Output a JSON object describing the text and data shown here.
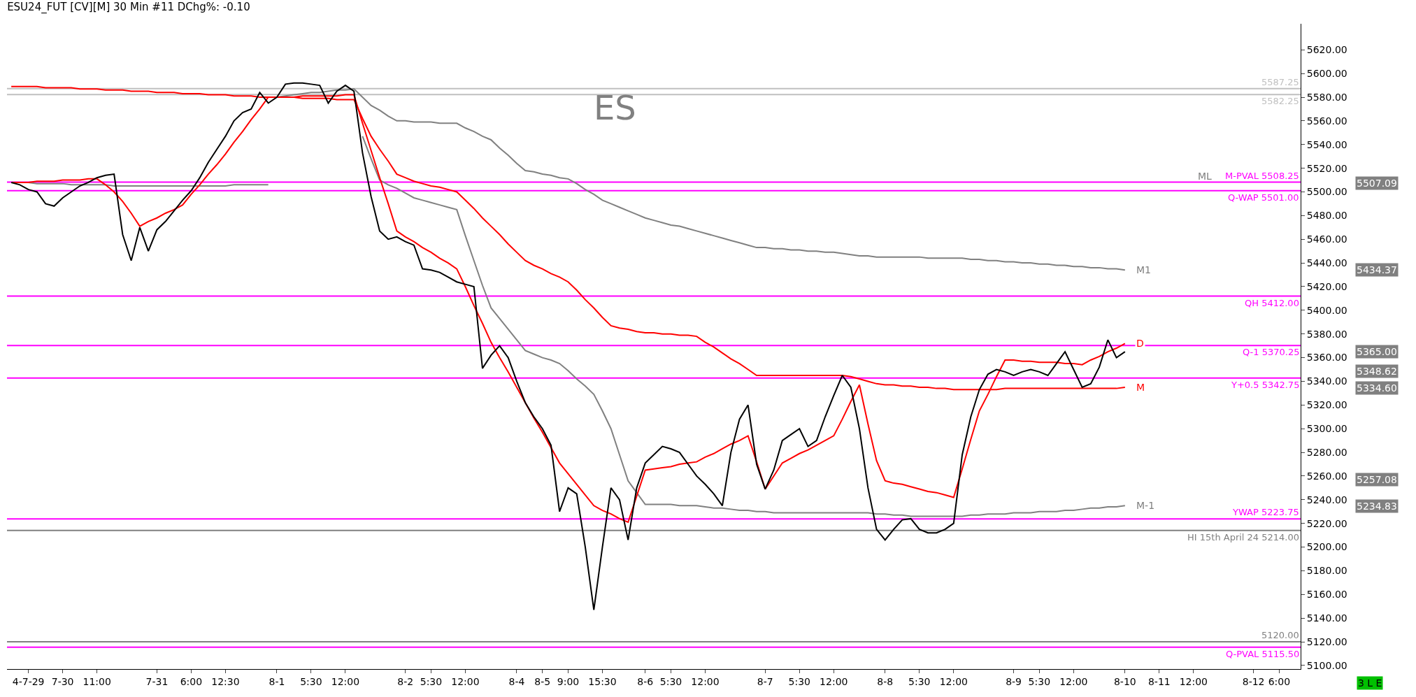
{
  "chart_data": {
    "type": "line",
    "title": "ESU24_FUT [CV][M] 30 Min #11 DChg%: -0.10",
    "categories": [
      null,
      null,
      "4-7-29",
      null,
      null,
      null,
      "7-30",
      null,
      null,
      null,
      "11:00",
      null,
      null,
      null,
      null,
      null,
      null,
      "7-31",
      null,
      null,
      null,
      "6:00",
      null,
      null,
      null,
      "12:30",
      null,
      null,
      null,
      null,
      null,
      "8-1",
      null,
      null,
      null,
      "5:30",
      null,
      null,
      null,
      "12:00",
      null,
      null,
      null,
      null,
      null,
      null,
      "8-2",
      null,
      null,
      "5:30",
      null,
      null,
      null,
      "12:00",
      null,
      null,
      null,
      null,
      null,
      "8-4",
      null,
      null,
      "8-5",
      null,
      null,
      "9:00",
      null,
      null,
      null,
      "15:30",
      null,
      null,
      null,
      null,
      "8-6",
      null,
      null,
      "5:30",
      null,
      null,
      null,
      "12:00",
      null,
      null,
      null,
      null,
      null,
      null,
      "8-7",
      null,
      null,
      null,
      "5:30",
      null,
      null,
      null,
      "12:00",
      null,
      null,
      null,
      null,
      null,
      "8-8",
      null,
      null,
      null,
      "5:30",
      null,
      null,
      null,
      "12:00",
      null,
      null,
      null,
      null,
      null,
      null,
      "8-9",
      null,
      null,
      "5:30",
      null,
      null,
      null,
      "12:00",
      null,
      null,
      null,
      null,
      null,
      "8-10",
      null,
      null,
      null,
      "8-11",
      null,
      null,
      null,
      "12:00",
      null,
      null,
      null,
      null,
      null,
      null,
      "8-12",
      null,
      null,
      "6:00",
      null,
      null
    ],
    "ylim": [
      5097,
      5642
    ],
    "yticks": [
      {
        "value": 5100,
        "label": "5100.00"
      },
      {
        "value": 5120,
        "label": "5120.00"
      },
      {
        "value": 5140,
        "label": "5140.00"
      },
      {
        "value": 5160,
        "label": "5160.00"
      },
      {
        "value": 5180,
        "label": "5180.00"
      },
      {
        "value": 5200,
        "label": "5200.00"
      },
      {
        "value": 5220,
        "label": "5220.00"
      },
      {
        "value": 5240,
        "label": "5240.00"
      },
      {
        "value": 5260,
        "label": "5260.00"
      },
      {
        "value": 5280,
        "label": "5280.00"
      },
      {
        "value": 5300,
        "label": "5300.00"
      },
      {
        "value": 5320,
        "label": "5320.00"
      },
      {
        "value": 5340,
        "label": "5340.00"
      },
      {
        "value": 5360,
        "label": "5360.00"
      },
      {
        "value": 5380,
        "label": "5380.00"
      },
      {
        "value": 5400,
        "label": "5400.00"
      },
      {
        "value": 5420,
        "label": "5420.00"
      },
      {
        "value": 5440,
        "label": "5440.00"
      },
      {
        "value": 5460,
        "label": "5460.00"
      },
      {
        "value": 5480,
        "label": "5480.00"
      },
      {
        "value": 5500,
        "label": "5500.00"
      },
      {
        "value": 5520,
        "label": "5520.00"
      },
      {
        "value": 5540,
        "label": "5540.00"
      },
      {
        "value": 5560,
        "label": "5560.00"
      },
      {
        "value": 5580,
        "label": "5580.00"
      },
      {
        "value": 5600,
        "label": "5600.00"
      },
      {
        "value": 5620,
        "label": "5620.00"
      }
    ],
    "grid": false,
    "marker": "none",
    "line_style": "solid",
    "series": [
      {
        "color": "#808080",
        "values": [
          5508,
          5508,
          5508,
          5507,
          5507,
          5507,
          5507,
          5506,
          5506,
          5506,
          5506,
          5506,
          5505,
          5505,
          5505,
          5505,
          5505,
          5505,
          5505,
          5505,
          5505,
          5505,
          5505,
          5505,
          5505,
          5505,
          5506,
          5506,
          5506,
          5506,
          5506,
          null,
          null,
          null,
          null,
          null,
          null,
          null,
          null,
          null,
          null,
          null,
          null,
          null,
          null,
          null,
          null,
          null,
          null,
          null,
          null,
          null,
          null,
          null,
          null,
          null,
          null,
          null,
          null,
          null,
          null,
          null,
          null,
          null,
          null,
          null,
          null,
          null,
          null,
          null,
          null,
          null,
          null,
          null,
          null,
          null,
          null,
          null,
          null,
          null,
          null,
          null,
          null,
          null,
          null,
          null,
          null,
          null,
          null,
          null,
          null,
          null,
          null,
          null,
          null,
          null,
          null,
          null,
          null,
          null,
          null,
          null,
          null,
          null,
          null,
          null,
          null,
          null,
          null,
          null,
          null,
          null,
          null,
          null,
          null,
          null,
          null,
          null,
          null,
          null,
          null,
          null,
          null,
          null,
          null,
          null,
          null,
          null,
          null,
          null,
          null,
          null,
          null,
          null,
          null,
          null,
          null,
          null,
          null,
          null,
          null,
          null,
          null,
          null,
          null,
          null,
          null,
          null,
          null,
          null,
          null
        ]
      },
      {
        "name": "M1",
        "color": "#808080",
        "values": [
          null,
          null,
          null,
          null,
          null,
          null,
          null,
          null,
          null,
          null,
          null,
          null,
          null,
          null,
          null,
          null,
          null,
          null,
          null,
          null,
          null,
          null,
          null,
          null,
          null,
          null,
          null,
          null,
          null,
          null,
          null,
          5580,
          5581,
          5582,
          5583,
          5584,
          5584,
          5585,
          5586,
          5586,
          5587,
          5580,
          5573,
          5569,
          5564,
          5560,
          5560,
          5559,
          5559,
          5559,
          5558,
          5558,
          5558,
          5554,
          5551,
          5547,
          5544,
          5537,
          5531,
          5524,
          5518,
          5517,
          5515,
          5514,
          5512,
          5511,
          5507,
          5502,
          5498,
          5493,
          5490,
          5487,
          5484,
          5481,
          5478,
          5476,
          5474,
          5472,
          5471,
          5469,
          5467,
          5465,
          5463,
          5461,
          5459,
          5457,
          5455,
          5453,
          5453,
          5452,
          5452,
          5451,
          5451,
          5450,
          5450,
          5449,
          5449,
          5448,
          5447,
          5446,
          5446,
          5445,
          5445,
          5445,
          5445,
          5445,
          5445,
          5444,
          5444,
          5444,
          5444,
          5444,
          5443,
          5443,
          5442,
          5442,
          5441,
          5441,
          5440,
          5440,
          5439,
          5439,
          5438,
          5438,
          5437,
          5437,
          5436,
          5436,
          5435,
          5435,
          5434,
          null,
          null,
          null,
          null,
          null,
          null,
          null,
          null,
          null,
          null,
          null,
          null,
          null,
          null,
          null,
          null,
          null,
          null,
          null,
          null
        ]
      },
      {
        "name": "M-1",
        "color": "#808080",
        "values": [
          null,
          null,
          null,
          null,
          null,
          null,
          null,
          null,
          null,
          null,
          null,
          null,
          null,
          null,
          null,
          null,
          null,
          null,
          null,
          null,
          null,
          null,
          null,
          null,
          null,
          null,
          null,
          null,
          null,
          null,
          null,
          null,
          null,
          null,
          null,
          null,
          null,
          null,
          null,
          null,
          null,
          5547,
          5528,
          5510,
          5506,
          5503,
          5499,
          5495,
          5493,
          5491,
          5489,
          5487,
          5485,
          5463,
          5442,
          5421,
          5402,
          5393,
          5384,
          5375,
          5366,
          5363,
          5360,
          5358,
          5355,
          5349,
          5342,
          5336,
          5329,
          5315,
          5300,
          5278,
          5256,
          5246,
          5236,
          5236,
          5236,
          5236,
          5235,
          5235,
          5235,
          5234,
          5233,
          5233,
          5232,
          5231,
          5231,
          5230,
          5230,
          5229,
          5229,
          5229,
          5229,
          5229,
          5229,
          5229,
          5229,
          5229,
          5229,
          5229,
          5229,
          5228,
          5228,
          5227,
          5227,
          5226,
          5226,
          5226,
          5226,
          5226,
          5226,
          5226,
          5227,
          5227,
          5228,
          5228,
          5228,
          5229,
          5229,
          5229,
          5230,
          5230,
          5230,
          5231,
          5231,
          5232,
          5233,
          5233,
          5234,
          5234,
          5235,
          null,
          null,
          null,
          null,
          null,
          null,
          null,
          null,
          null,
          null,
          null,
          null,
          null,
          null,
          null,
          null,
          null,
          null,
          null,
          null
        ]
      },
      {
        "name": "D",
        "color": "#ff0000",
        "values": [
          5508,
          5508,
          5508,
          5509,
          5509,
          5509,
          5510,
          5510,
          5510,
          5511,
          5511,
          5506,
          5500,
          5492,
          5482,
          5471,
          5475,
          5478,
          5482,
          5485,
          5489,
          5498,
          5506,
          5515,
          5523,
          5532,
          5542,
          5551,
          5561,
          5570,
          5580,
          5580,
          5580,
          5580,
          5581,
          5581,
          5581,
          5581,
          5581,
          5582,
          5582,
          5558,
          5535,
          5512,
          5490,
          5467,
          5462,
          5458,
          5453,
          5449,
          5444,
          5440,
          5435,
          5420,
          5404,
          5389,
          5373,
          5360,
          5348,
          5335,
          5322,
          5309,
          5297,
          5284,
          5271,
          5262,
          5253,
          5244,
          5235,
          5231,
          5228,
          5224,
          5221,
          5243,
          5265,
          5266,
          5267,
          5268,
          5270,
          5271,
          5272,
          5276,
          5279,
          5283,
          5287,
          5290,
          5294,
          5272,
          5249,
          5260,
          5271,
          5275,
          5279,
          5282,
          5286,
          5290,
          5294,
          5308,
          5323,
          5337,
          5304,
          5273,
          5256,
          5254,
          5253,
          5251,
          5249,
          5247,
          5246,
          5244,
          5242,
          5266,
          5291,
          5315,
          5329,
          5344,
          5358,
          5358,
          5357,
          5357,
          5356,
          5356,
          5356,
          5355,
          5355,
          5354,
          5358,
          5361,
          5365,
          5368,
          5372,
          null,
          null,
          null,
          null,
          null,
          null,
          null,
          null,
          null,
          null,
          null,
          null,
          null,
          null,
          null,
          null,
          null,
          null,
          null,
          null
        ]
      },
      {
        "name": "M",
        "color": "#ff0000",
        "values": [
          5589,
          5589,
          5589,
          5589,
          5588,
          5588,
          5588,
          5588,
          5587,
          5587,
          5587,
          5586,
          5586,
          5586,
          5585,
          5585,
          5585,
          5584,
          5584,
          5584,
          5583,
          5583,
          5583,
          5582,
          5582,
          5582,
          5581,
          5581,
          5581,
          5580,
          5580,
          5580,
          5580,
          5580,
          5579,
          5579,
          5579,
          5579,
          5578,
          5578,
          5578,
          5562,
          5547,
          5536,
          5526,
          5515,
          5512,
          5509,
          5507,
          5505,
          5504,
          5502,
          5500,
          5493,
          5486,
          5478,
          5471,
          5464,
          5456,
          5449,
          5442,
          5438,
          5435,
          5431,
          5428,
          5424,
          5417,
          5409,
          5402,
          5394,
          5387,
          5385,
          5384,
          5382,
          5381,
          5381,
          5380,
          5380,
          5379,
          5379,
          5378,
          5373,
          5369,
          5364,
          5359,
          5355,
          5350,
          5345,
          5345,
          5345,
          5345,
          5345,
          5345,
          5345,
          5345,
          5345,
          5345,
          5345,
          5344,
          5342,
          5340,
          5338,
          5337,
          5337,
          5336,
          5336,
          5335,
          5335,
          5334,
          5334,
          5333,
          5333,
          5333,
          5333,
          5333,
          5333,
          5334,
          5334,
          5334,
          5334,
          5334,
          5334,
          5334,
          5334,
          5334,
          5334,
          5334,
          5334,
          5334,
          5334,
          5335,
          null,
          null,
          null,
          null,
          null,
          null,
          null,
          null,
          null,
          null,
          null,
          null,
          null,
          null,
          null,
          null,
          null,
          null,
          null,
          null
        ]
      },
      {
        "color": "#000000",
        "values": [
          5508,
          5506,
          5502,
          5500,
          5490,
          5488,
          5495,
          5500,
          5505,
          5508,
          5512,
          5514,
          5515,
          5464,
          5442,
          5470,
          5450,
          5468,
          5475,
          5484,
          5493,
          5501,
          5512,
          5525,
          5536,
          5547,
          5560,
          5567,
          5570,
          5584,
          5575,
          5580,
          5591,
          5592,
          5592,
          5591,
          5590,
          5575,
          5585,
          5590,
          5585,
          5533,
          5496,
          5467,
          5460,
          5462,
          5458,
          5455,
          5435,
          5434,
          5432,
          5428,
          5424,
          5422,
          5420,
          5351,
          5362,
          5370,
          5360,
          5340,
          5322,
          5310,
          5300,
          5286,
          5230,
          5250,
          5245,
          5200,
          5147,
          5200,
          5250,
          5240,
          5206,
          5250,
          5271,
          5278,
          5285,
          5283,
          5280,
          5270,
          5260,
          5253,
          5245,
          5235,
          5280,
          5308,
          5320,
          5270,
          5249,
          5265,
          5290,
          5295,
          5300,
          5285,
          5290,
          5310,
          5328,
          5345,
          5335,
          5300,
          5250,
          5215,
          5206,
          5215,
          5223,
          5224,
          5215,
          5212,
          5212,
          5215,
          5220,
          5278,
          5310,
          5333,
          5346,
          5350,
          5348,
          5345,
          5348,
          5350,
          5348,
          5345,
          5355,
          5365,
          5350,
          5335,
          5338,
          5352,
          5375,
          5360,
          5365,
          null,
          null,
          null,
          null,
          null,
          null,
          null,
          null,
          null,
          null,
          null,
          null,
          null,
          null,
          null,
          null,
          null,
          null,
          null,
          null
        ]
      }
    ],
    "ref_lines": [
      {
        "axis": "y",
        "value": 5587.25,
        "label": "5587.25",
        "color": "#c0c0c0"
      },
      {
        "axis": "y",
        "value": 5582.25,
        "label": "5582.25",
        "color": "#c0c0c0"
      },
      {
        "axis": "y",
        "value": 5508.25,
        "label": "M-PVAL 5508.25",
        "color": "#ff00ff"
      },
      {
        "axis": "y",
        "value": 5501,
        "label": "Q-WAP 5501.00",
        "color": "#ff00ff"
      },
      {
        "axis": "y",
        "value": 5412,
        "label": "QH 5412.00",
        "color": "#ff00ff"
      },
      {
        "axis": "y",
        "value": 5370.25,
        "label": "Q-1 5370.25",
        "color": "#ff00ff"
      },
      {
        "axis": "y",
        "value": 5342.75,
        "label": "Y+0.5 5342.75",
        "color": "#ff00ff"
      },
      {
        "axis": "y",
        "value": 5223.75,
        "label": "YWAP 5223.75",
        "color": "#ff00ff"
      },
      {
        "axis": "y",
        "value": 5214,
        "label": "HI 15th April 24 5214.00",
        "color": "#808080"
      },
      {
        "axis": "y",
        "value": 5120,
        "label": "5120.00",
        "color": "#808080"
      },
      {
        "axis": "y",
        "value": 5115.5,
        "label": "Q-PVAL 5115.50",
        "color": "#ff00ff"
      }
    ],
    "annotations": [
      "ES",
      "ML",
      "5507.09",
      "5434.37",
      "5365.00",
      "5348.62",
      "5334.60",
      "5257.08",
      "5234.83",
      "3 L E"
    ]
  }
}
